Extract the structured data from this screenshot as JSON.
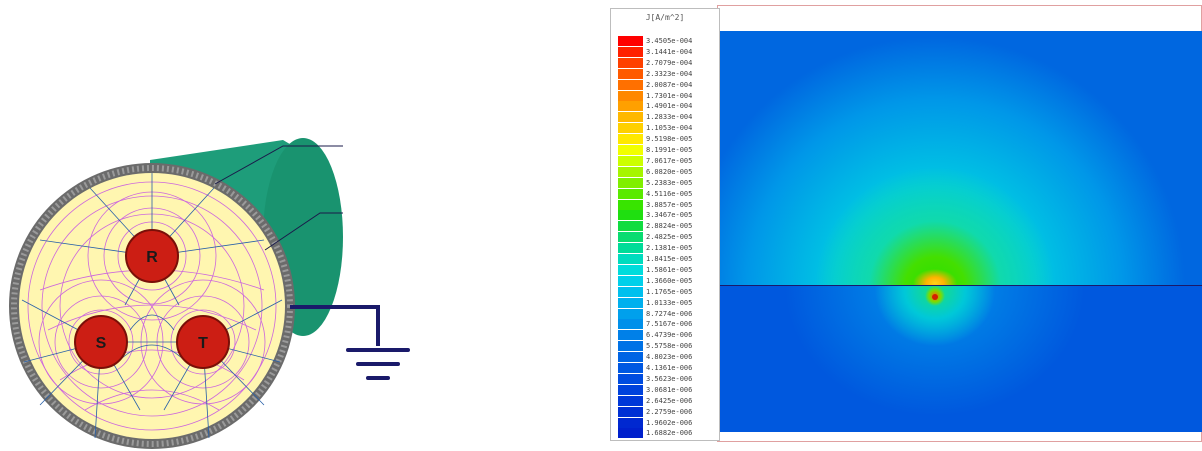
{
  "cable": {
    "conductors": [
      {
        "label": "R",
        "color": "#cc1e14"
      },
      {
        "label": "S",
        "color": "#cc1e14"
      },
      {
        "label": "T",
        "color": "#cc1e14"
      }
    ],
    "colors": {
      "sheath": "#1e9d7a",
      "insulation": "#fff6b0",
      "armor": "#6b6b6b",
      "equipotential_lines": "#cc66dd",
      "flux_lines": "#2860a8",
      "ground_wire": "#1a1a6a"
    },
    "icons": [
      "ground-icon"
    ]
  },
  "field_plot": {
    "legend_title": "J[A/m^2]",
    "legend_values": [
      "3.4505e-004",
      "3.1441e-004",
      "2.7079e-004",
      "2.3323e-004",
      "2.0087e-004",
      "1.7301e-004",
      "1.4901e-004",
      "1.2833e-004",
      "1.1053e-004",
      "9.5198e-005",
      "8.1991e-005",
      "7.0617e-005",
      "6.0820e-005",
      "5.2383e-005",
      "4.5116e-005",
      "3.8857e-005",
      "3.3467e-005",
      "2.8824e-005",
      "2.4825e-005",
      "2.1381e-005",
      "1.8415e-005",
      "1.5861e-005",
      "1.3660e-005",
      "1.1765e-005",
      "1.0133e-005",
      "8.7274e-006",
      "7.5167e-006",
      "6.4739e-006",
      "5.5758e-006",
      "4.8023e-006",
      "4.1361e-006",
      "3.5623e-006",
      "3.0681e-006",
      "2.6425e-006",
      "2.2759e-006",
      "1.9602e-006",
      "1.6882e-006"
    ],
    "legend_colors": [
      "#ff0000",
      "#ff2000",
      "#ff4000",
      "#ff5a00",
      "#ff7000",
      "#ff8800",
      "#ffa000",
      "#ffb800",
      "#ffd000",
      "#ffe800",
      "#f2ff00",
      "#ccff00",
      "#a6f500",
      "#80ef00",
      "#5aea00",
      "#38e400",
      "#1fdf10",
      "#10dc40",
      "#08dc70",
      "#00dc98",
      "#00dcbe",
      "#00dcdc",
      "#00d0ea",
      "#00c0ee",
      "#00b0ee",
      "#00a0ec",
      "#0090ea",
      "#0080e8",
      "#0072e6",
      "#0064e4",
      "#0058e2",
      "#004ce0",
      "#0042dc",
      "#0038d8",
      "#0030d4",
      "#0028d0",
      "#0020cc"
    ]
  }
}
